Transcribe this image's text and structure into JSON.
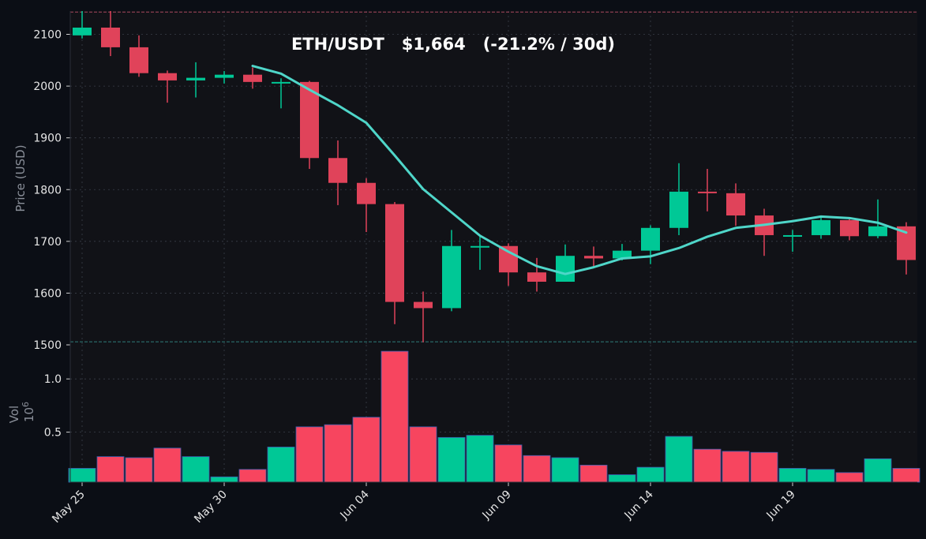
{
  "chart_data": [
    {
      "type": "candlestick",
      "title": "ETH/USDT   $1,664   (-21.2% / 30d)",
      "ylabel": "Price (USD)",
      "ylim": [
        1500,
        2145
      ],
      "yticks": [
        1500,
        1600,
        1700,
        1800,
        1900,
        2000,
        2100
      ],
      "x_tick_labels": [
        "May 25",
        "May 30",
        "Jun 04",
        "Jun 09",
        "Jun 14",
        "Jun 19"
      ],
      "dates": [
        "May 25",
        "May 26",
        "May 27",
        "May 28",
        "May 29",
        "May 30",
        "May 31",
        "Jun 01",
        "Jun 02",
        "Jun 03",
        "Jun 04",
        "Jun 05",
        "Jun 06",
        "Jun 07",
        "Jun 08",
        "Jun 09",
        "Jun 10",
        "Jun 11",
        "Jun 12",
        "Jun 13",
        "Jun 14",
        "Jun 15",
        "Jun 16",
        "Jun 17",
        "Jun 18",
        "Jun 19",
        "Jun 20",
        "Jun 21",
        "Jun 22",
        "Jun 23"
      ],
      "open": [
        2098,
        2113,
        2075,
        2025,
        2011,
        2016,
        2022,
        2008,
        2008,
        1861,
        1813,
        1772,
        1583,
        1571,
        1691,
        1691,
        1640,
        1622,
        1672,
        1667,
        1682,
        1726,
        1796,
        1793,
        1750,
        1712,
        1712,
        1741,
        1710,
        1729
      ],
      "high": [
        2145,
        2145,
        2098,
        2030,
        2046,
        2029,
        2036,
        2015,
        2010,
        1895,
        1822,
        1776,
        1603,
        1722,
        1709,
        1696,
        1668,
        1694,
        1690,
        1695,
        1731,
        1851,
        1840,
        1812,
        1763,
        1722,
        1747,
        1746,
        1781,
        1737
      ],
      "low": [
        2092,
        2058,
        2018,
        1968,
        1978,
        2005,
        1995,
        1957,
        1840,
        1770,
        1718,
        1540,
        1505,
        1565,
        1645,
        1614,
        1603,
        1622,
        1650,
        1663,
        1656,
        1712,
        1758,
        1730,
        1672,
        1680,
        1705,
        1702,
        1706,
        1636
      ],
      "close": [
        2113,
        2075,
        2025,
        2011,
        2016,
        2022,
        2008,
        2008,
        1861,
        1813,
        1772,
        1583,
        1571,
        1691,
        1691,
        1640,
        1622,
        1672,
        1667,
        1682,
        1726,
        1796,
        1793,
        1750,
        1712,
        1712,
        1741,
        1710,
        1729,
        1664
      ],
      "moving_average": {
        "start_index": 6,
        "values": [
          2039,
          2024,
          1993,
          1963,
          1929,
          1866,
          1801,
          1756,
          1711,
          1680,
          1652,
          1637,
          1650,
          1667,
          1671,
          1687,
          1709,
          1726,
          1732,
          1739,
          1748,
          1745,
          1736,
          1717
        ]
      },
      "reference_lines": [
        2143,
        1506
      ],
      "grid": true
    },
    {
      "type": "bar",
      "ylabel": "Vol",
      "ylabel_unit": "10",
      "ylabel_exponent": "6",
      "yticks": [
        0.5,
        1.0
      ],
      "ytick_labels": [
        "0.5",
        "1.0"
      ],
      "ylim": [
        0.03,
        1.32
      ],
      "values": [
        0.16,
        0.27,
        0.26,
        0.35,
        0.27,
        0.08,
        0.15,
        0.36,
        0.55,
        0.57,
        0.64,
        1.26,
        0.55,
        0.45,
        0.47,
        0.38,
        0.28,
        0.26,
        0.19,
        0.1,
        0.17,
        0.46,
        0.34,
        0.32,
        0.31,
        0.16,
        0.15,
        0.12,
        0.25,
        0.16
      ],
      "grid": true
    }
  ],
  "colors": {
    "background": "#0b0e15",
    "plot_background": "#111217",
    "up": "#00c896",
    "down": "#e0435a",
    "volume_down": "#f7455f",
    "volume_edge": "#3d5fb3",
    "moving_average": "#4fd6c9",
    "reference_top": "#a8485f",
    "reference_bottom": "#2f7d78",
    "axis_text": "#e6e6e6",
    "axis_title": "#8a8f99"
  }
}
